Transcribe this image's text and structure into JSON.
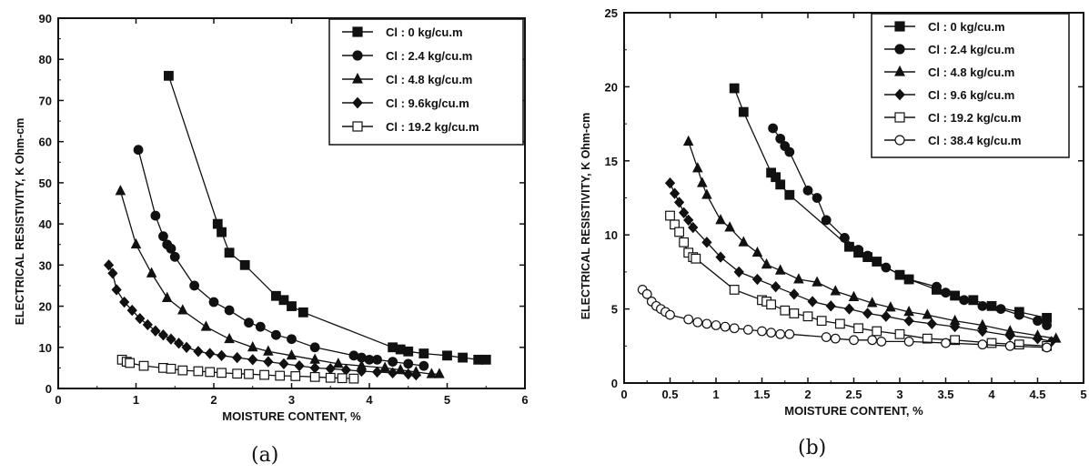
{
  "chart_data": [
    {
      "panel": "(a)",
      "type": "scatter",
      "xlabel": "MOISTURE CONTENT, %",
      "ylabel": "ELECTRICAL RESISTIVITY, K Ohm-cm",
      "xlim": [
        0,
        6
      ],
      "ylim": [
        0,
        90
      ],
      "xticks": [
        0,
        1,
        2,
        3,
        4,
        5,
        6
      ],
      "yticks": [
        0,
        10,
        20,
        30,
        40,
        50,
        60,
        70,
        80,
        90
      ],
      "legend_position": "top-right",
      "series": [
        {
          "name": "Cl : 0 kg/cu.m",
          "marker": "square-filled",
          "x": [
            1.42,
            2.05,
            2.1,
            2.2,
            2.4,
            2.8,
            2.9,
            3.0,
            3.15,
            4.3,
            4.4,
            4.5,
            4.7,
            5.0,
            5.2,
            5.4,
            5.5
          ],
          "y": [
            76,
            40,
            38,
            33,
            30,
            22.5,
            21.5,
            20,
            18.5,
            10,
            9.5,
            9,
            8.5,
            8,
            7.5,
            7,
            7
          ]
        },
        {
          "name": "Cl : 2.4 kg/cu.m",
          "marker": "circle-filled",
          "x": [
            1.03,
            1.25,
            1.35,
            1.4,
            1.45,
            1.5,
            1.75,
            2.0,
            2.2,
            2.45,
            2.6,
            2.8,
            3.0,
            3.3,
            3.8,
            3.9,
            4.0,
            4.1,
            4.3,
            4.5,
            4.7
          ],
          "y": [
            58,
            42,
            37,
            35,
            34,
            32,
            25,
            21,
            19,
            16,
            15,
            13,
            12,
            10,
            8,
            7.5,
            7,
            7,
            6.5,
            6,
            5.5
          ]
        },
        {
          "name": "Cl : 4.8 kg/cu.m",
          "marker": "triangle-filled",
          "x": [
            0.8,
            1.0,
            1.2,
            1.4,
            1.6,
            1.9,
            2.2,
            2.5,
            2.7,
            3.0,
            3.3,
            3.6,
            3.9,
            4.2,
            4.4,
            4.6,
            4.8,
            4.9
          ],
          "y": [
            48,
            35,
            28,
            22,
            19,
            15,
            12,
            10,
            9,
            8,
            7,
            6,
            5.5,
            5,
            4.5,
            4,
            3.5,
            3.5
          ]
        },
        {
          "name": "Cl : 9.6kg/cu.m",
          "marker": "diamond-filled",
          "x": [
            0.65,
            0.7,
            0.75,
            0.85,
            0.95,
            1.05,
            1.15,
            1.25,
            1.35,
            1.45,
            1.55,
            1.65,
            1.8,
            1.95,
            2.1,
            2.3,
            2.5,
            2.7,
            2.9,
            3.1,
            3.3,
            3.5,
            3.7,
            3.9,
            4.1,
            4.3,
            4.5,
            4.6
          ],
          "y": [
            30,
            28,
            24,
            21,
            19,
            17,
            15.5,
            14,
            13,
            12,
            11,
            10,
            9,
            8.5,
            8,
            7.5,
            7,
            6.5,
            6,
            5.5,
            5,
            4.8,
            4.5,
            4.2,
            4,
            3.8,
            3.5,
            3.3
          ]
        },
        {
          "name": "Cl : 19.2 kg/cu.m",
          "marker": "square-open",
          "x": [
            0.82,
            0.88,
            0.92,
            1.1,
            1.35,
            1.45,
            1.6,
            1.8,
            1.95,
            2.1,
            2.3,
            2.45,
            2.65,
            2.85,
            3.05,
            3.3,
            3.5,
            3.65,
            3.8
          ],
          "y": [
            7,
            6.5,
            6.2,
            5.5,
            5,
            4.8,
            4.4,
            4.2,
            4,
            3.8,
            3.6,
            3.5,
            3.3,
            3.1,
            3,
            2.8,
            2.6,
            2.5,
            2.4
          ]
        }
      ]
    },
    {
      "panel": "(b)",
      "type": "scatter",
      "xlabel": "MOISTURE CONTENT, %",
      "ylabel": "ELECTRICAL RESISTIVITY, K Ohm-cm",
      "xlim": [
        0,
        5
      ],
      "ylim": [
        0,
        25
      ],
      "xticks": [
        0,
        0.5,
        1,
        1.5,
        2,
        2.5,
        3,
        3.5,
        4,
        4.5,
        5
      ],
      "xtick_labels": [
        "0",
        "0.5",
        "1",
        "1.5",
        "2",
        "2.5",
        "3",
        "3.5",
        "4",
        "4.5",
        "5"
      ],
      "yticks": [
        0,
        5,
        10,
        15,
        20,
        25
      ],
      "legend_position": "top-right",
      "series": [
        {
          "name": "Cl : 0 kg/cu.m",
          "marker": "square-filled",
          "x": [
            1.2,
            1.3,
            1.6,
            1.65,
            1.7,
            1.8,
            2.45,
            2.55,
            2.65,
            2.75,
            3.0,
            3.1,
            3.4,
            3.6,
            3.8,
            4.0,
            4.3,
            4.6
          ],
          "y": [
            19.9,
            18.3,
            14.2,
            13.9,
            13.4,
            12.7,
            9.2,
            8.8,
            8.5,
            8.2,
            7.3,
            7,
            6.3,
            5.9,
            5.6,
            5.2,
            4.8,
            4.4
          ]
        },
        {
          "name": "Cl : 2.4 kg/cu.m",
          "marker": "circle-filled",
          "x": [
            1.62,
            1.7,
            1.75,
            1.8,
            2.0,
            2.1,
            2.2,
            2.4,
            2.55,
            2.65,
            2.85,
            3.1,
            3.4,
            3.5,
            3.7,
            3.9,
            4.1,
            4.3,
            4.5,
            4.6
          ],
          "y": [
            17.2,
            16.5,
            16.0,
            15.6,
            13.0,
            12.5,
            11.0,
            9.8,
            9.0,
            8.6,
            7.8,
            7.0,
            6.5,
            6.1,
            5.6,
            5.2,
            5.0,
            4.6,
            4.2,
            3.9
          ]
        },
        {
          "name": "Cl : 4.8 kg/cu.m",
          "marker": "triangle-filled",
          "x": [
            0.7,
            0.8,
            0.85,
            0.9,
            1.05,
            1.15,
            1.3,
            1.45,
            1.55,
            1.7,
            1.9,
            2.1,
            2.3,
            2.5,
            2.7,
            2.9,
            3.1,
            3.3,
            3.6,
            3.9,
            4.2,
            4.5,
            4.7
          ],
          "y": [
            16.3,
            14.5,
            13.5,
            12.7,
            11.0,
            10.5,
            9.5,
            8.8,
            8.0,
            7.6,
            7.0,
            6.8,
            6.2,
            5.8,
            5.4,
            5.1,
            4.8,
            4.6,
            4.2,
            3.9,
            3.5,
            3.2,
            3.0
          ]
        },
        {
          "name": "Cl : 9.6 kg/cu.m",
          "marker": "diamond-filled",
          "x": [
            0.5,
            0.55,
            0.6,
            0.65,
            0.7,
            0.75,
            0.9,
            1.05,
            1.25,
            1.45,
            1.65,
            1.85,
            2.05,
            2.25,
            2.45,
            2.65,
            2.85,
            3.1,
            3.35,
            3.6,
            3.9,
            4.2,
            4.5,
            4.65
          ],
          "y": [
            13.5,
            12.8,
            12.2,
            11.5,
            11.0,
            10.5,
            9.5,
            8.5,
            7.5,
            7.0,
            6.5,
            6.0,
            5.5,
            5.2,
            5.0,
            4.7,
            4.5,
            4.2,
            4.0,
            3.8,
            3.5,
            3.2,
            3.0,
            2.8
          ]
        },
        {
          "name": "Cl : 19.2 kg/cu.m",
          "marker": "square-open",
          "x": [
            0.5,
            0.55,
            0.6,
            0.65,
            0.7,
            0.75,
            0.78,
            1.2,
            1.5,
            1.55,
            1.6,
            1.75,
            1.85,
            2.0,
            2.15,
            2.35,
            2.55,
            2.75,
            3.0,
            3.3,
            3.6,
            4.0,
            4.3,
            4.6
          ],
          "y": [
            11.3,
            10.7,
            10.2,
            9.5,
            8.8,
            8.5,
            8.4,
            6.3,
            5.6,
            5.5,
            5.3,
            4.9,
            4.7,
            4.5,
            4.2,
            4.0,
            3.7,
            3.5,
            3.3,
            3.0,
            2.9,
            2.7,
            2.6,
            2.5
          ]
        },
        {
          "name": "Cl : 38.4 kg/cu.m",
          "marker": "circle-open",
          "x": [
            0.2,
            0.25,
            0.3,
            0.35,
            0.4,
            0.45,
            0.5,
            0.7,
            0.8,
            0.9,
            1.0,
            1.1,
            1.2,
            1.35,
            1.5,
            1.6,
            1.7,
            1.8,
            2.2,
            2.3,
            2.5,
            2.7,
            2.8,
            3.1,
            3.5,
            3.9,
            4.2,
            4.6
          ],
          "y": [
            6.3,
            6.0,
            5.5,
            5.2,
            5.0,
            4.8,
            4.6,
            4.3,
            4.1,
            4.0,
            3.9,
            3.8,
            3.7,
            3.6,
            3.5,
            3.4,
            3.3,
            3.3,
            3.1,
            3.0,
            2.9,
            2.9,
            2.8,
            2.8,
            2.7,
            2.6,
            2.5,
            2.4
          ]
        }
      ]
    }
  ]
}
